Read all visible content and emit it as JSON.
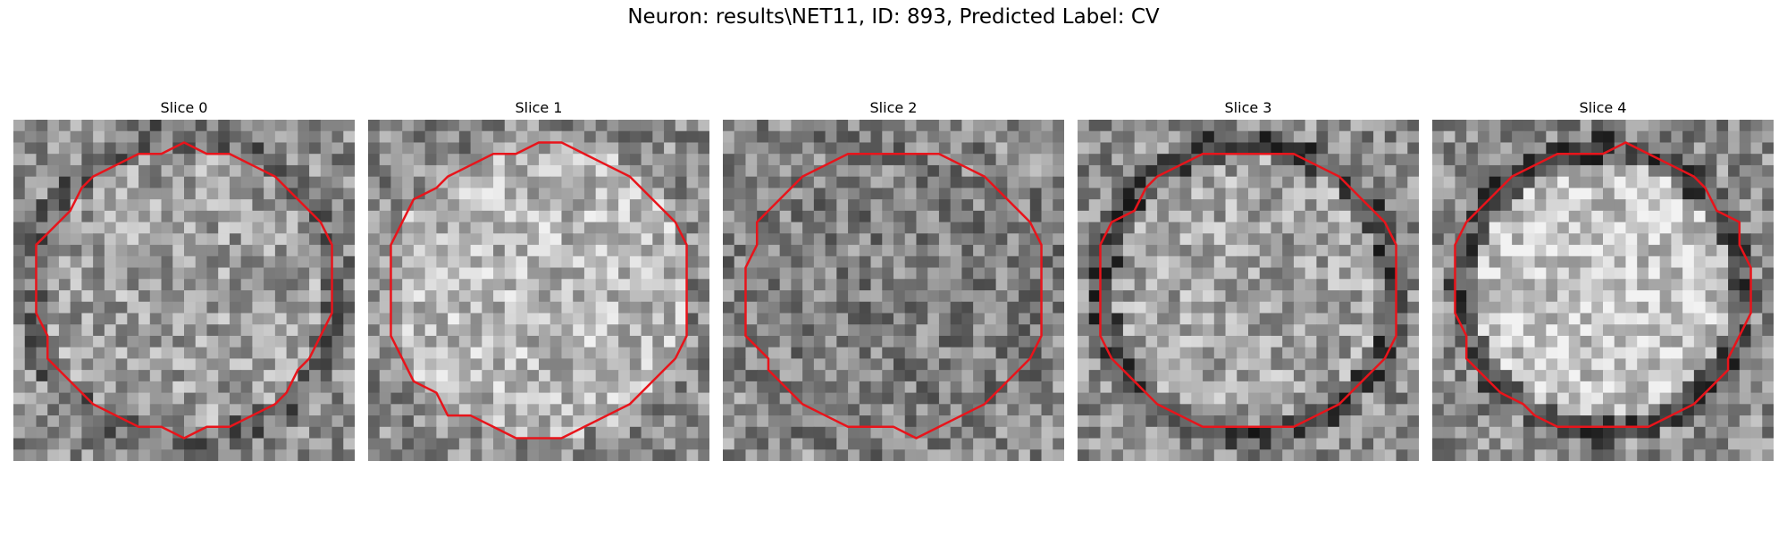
{
  "figure": {
    "title": "Neuron: results\\NET11, ID: 893, Predicted Label: CV"
  },
  "panels": [
    {
      "title": "Slice 0",
      "contour_color": "#e8141b",
      "seed": 11,
      "center_level": 0.62,
      "rim_level": 0.42,
      "radius": 0.48
    },
    {
      "title": "Slice 1",
      "contour_color": "#e8141b",
      "seed": 23,
      "center_level": 0.72,
      "rim_level": 0.55,
      "radius": 0.52
    },
    {
      "title": "Slice 2",
      "contour_color": "#e8141b",
      "seed": 37,
      "center_level": 0.5,
      "rim_level": 0.5,
      "radius": 0.5
    },
    {
      "title": "Slice 3",
      "contour_color": "#e8141b",
      "seed": 41,
      "center_level": 0.64,
      "rim_level": 0.3,
      "radius": 0.46
    },
    {
      "title": "Slice 4",
      "contour_color": "#e8141b",
      "seed": 53,
      "center_level": 0.78,
      "rim_level": 0.32,
      "radius": 0.44
    }
  ]
}
